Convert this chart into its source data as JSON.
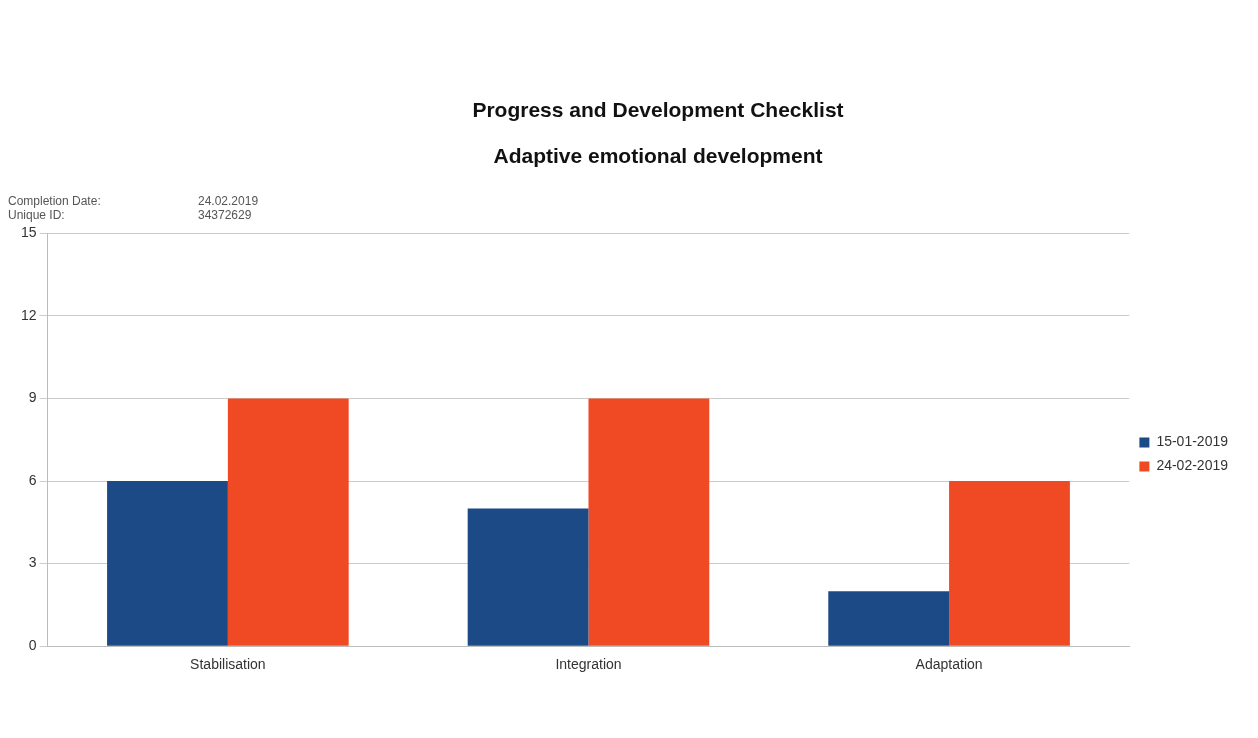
{
  "chart_data": {
    "type": "bar",
    "title": "Progress and Development Checklist",
    "subtitle": "Adaptive emotional development",
    "annotations": [
      "Completion Date:",
      "24.02.2019",
      "Unique ID:",
      "34372629"
    ],
    "categories": [
      "Stabilisation",
      "Integration",
      "Adaptation"
    ],
    "series": [
      {
        "name": "15-01-2019",
        "color": "#1b4a86",
        "values": [
          6,
          5,
          2
        ]
      },
      {
        "name": "24-02-2019",
        "color": "#ef4a23",
        "values": [
          9,
          9,
          6
        ]
      }
    ],
    "ylim": [
      0,
      15
    ],
    "yticks": [
      0,
      3,
      6,
      9,
      12,
      15
    ],
    "grid": "y",
    "legend": "right"
  }
}
